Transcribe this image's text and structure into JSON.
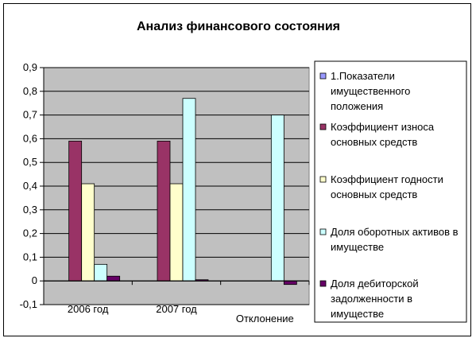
{
  "chart_data": {
    "type": "bar",
    "title": "Анализ финансового состояния",
    "xlabel": "",
    "ylabel": "",
    "categories": [
      "2006 год",
      "2007 год",
      "Отклонение"
    ],
    "ylim": [
      -0.1,
      0.9
    ],
    "y_ticks": [
      "-0,1",
      "0",
      "0,1",
      "0,2",
      "0,3",
      "0,4",
      "0,5",
      "0,6",
      "0,7",
      "0,8",
      "0,9"
    ],
    "grid": "horizontal",
    "legend_position": "right",
    "series": [
      {
        "name": "1.Показатели имущественного положения",
        "legend_lines": [
          "1.Показатели",
          "имущественного",
          "положения"
        ],
        "color": "#9999FF",
        "values": [
          0,
          0,
          0
        ]
      },
      {
        "name": "Коэффициент износа основных средств",
        "legend_lines": [
          "Коэффициент износа",
          "основных средств"
        ],
        "color": "#993366",
        "values": [
          0.59,
          0.59,
          0
        ]
      },
      {
        "name": "Коэффициент годности основных средств",
        "legend_lines": [
          "Коэффициент годности",
          "основных средств"
        ],
        "color": "#FFFFCC",
        "values": [
          0.41,
          0.41,
          0
        ]
      },
      {
        "name": "Доля оборотных активов в имуществе",
        "legend_lines": [
          "Доля оборотных активов в",
          "имуществе"
        ],
        "color": "#CCFFFF",
        "values": [
          0.07,
          0.77,
          0.7
        ]
      },
      {
        "name": "Доля дебиторской задолженности в имуществе",
        "legend_lines": [
          "Доля дебиторской",
          "задолженности в",
          "имуществе"
        ],
        "color": "#660066",
        "values": [
          0.02,
          0.005,
          -0.015
        ]
      }
    ]
  },
  "colors": {
    "plot_background": "#C0C0C0",
    "gridline": "#000000",
    "bar_outline": "#000000"
  }
}
